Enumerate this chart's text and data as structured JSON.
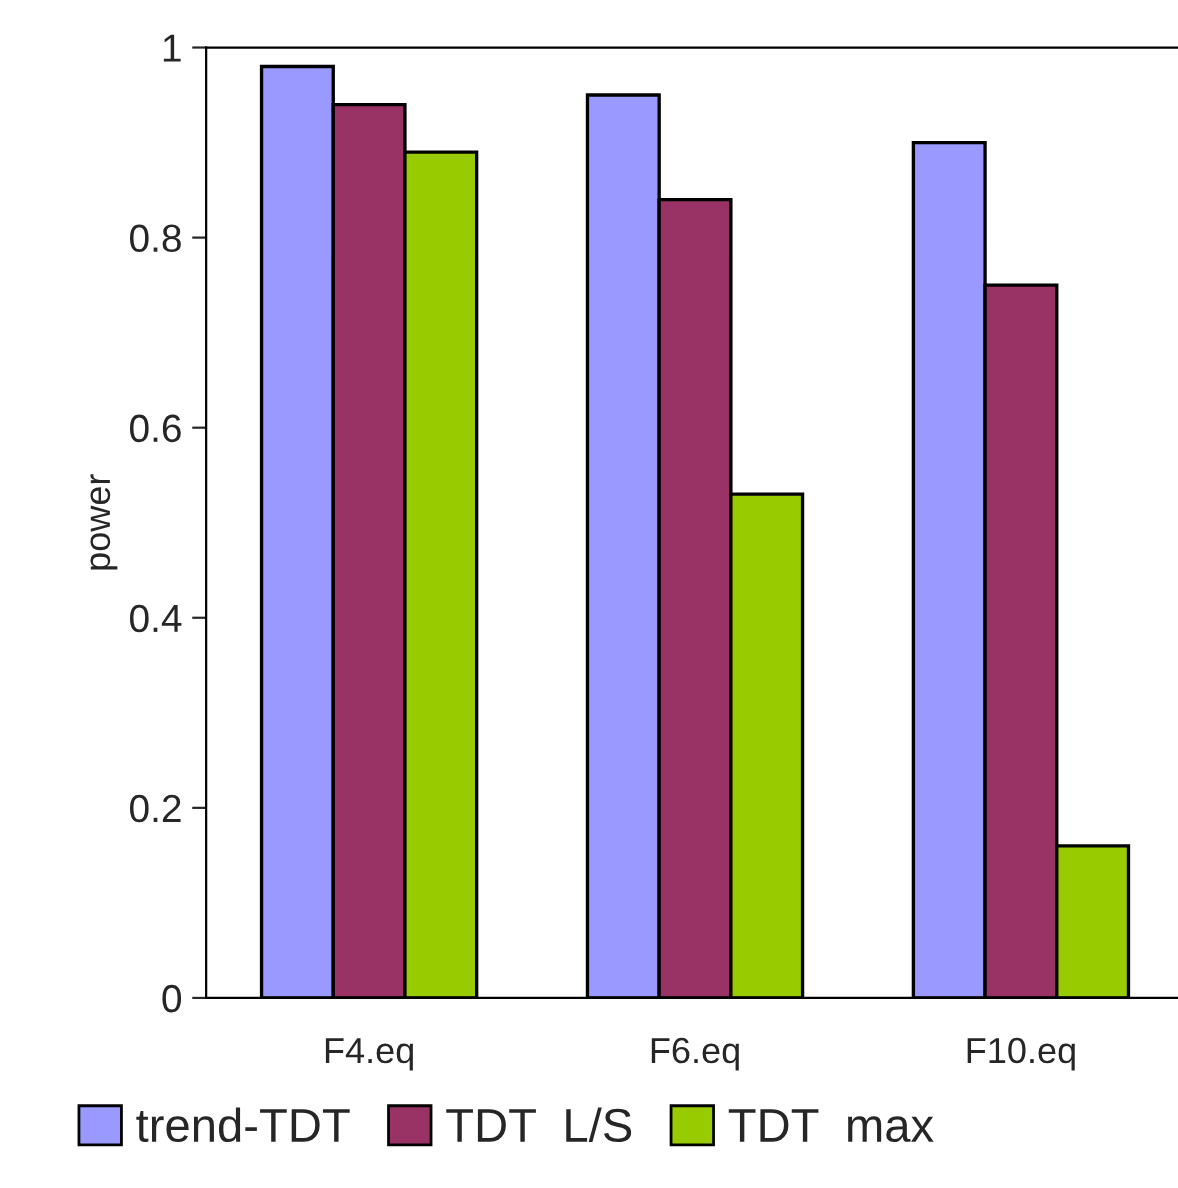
{
  "chart_data": {
    "type": "bar",
    "ylabel": "power",
    "categories": [
      "F4.eq",
      "F6.eq",
      "F10.eq"
    ],
    "series": [
      {
        "name": "trend-TDT",
        "color": "#9999ff",
        "values": [
          0.98,
          0.95,
          0.9
        ]
      },
      {
        "name": "TDT  L/S",
        "color": "#993366",
        "values": [
          0.94,
          0.84,
          0.75
        ]
      },
      {
        "name": "TDT  max",
        "color": "#99cc00",
        "values": [
          0.89,
          0.53,
          0.16
        ]
      }
    ],
    "ylim": [
      0,
      1
    ],
    "yticks": [
      0,
      0.2,
      0.4,
      0.6,
      0.8,
      1
    ],
    "grid": false,
    "legend": "bottom"
  }
}
